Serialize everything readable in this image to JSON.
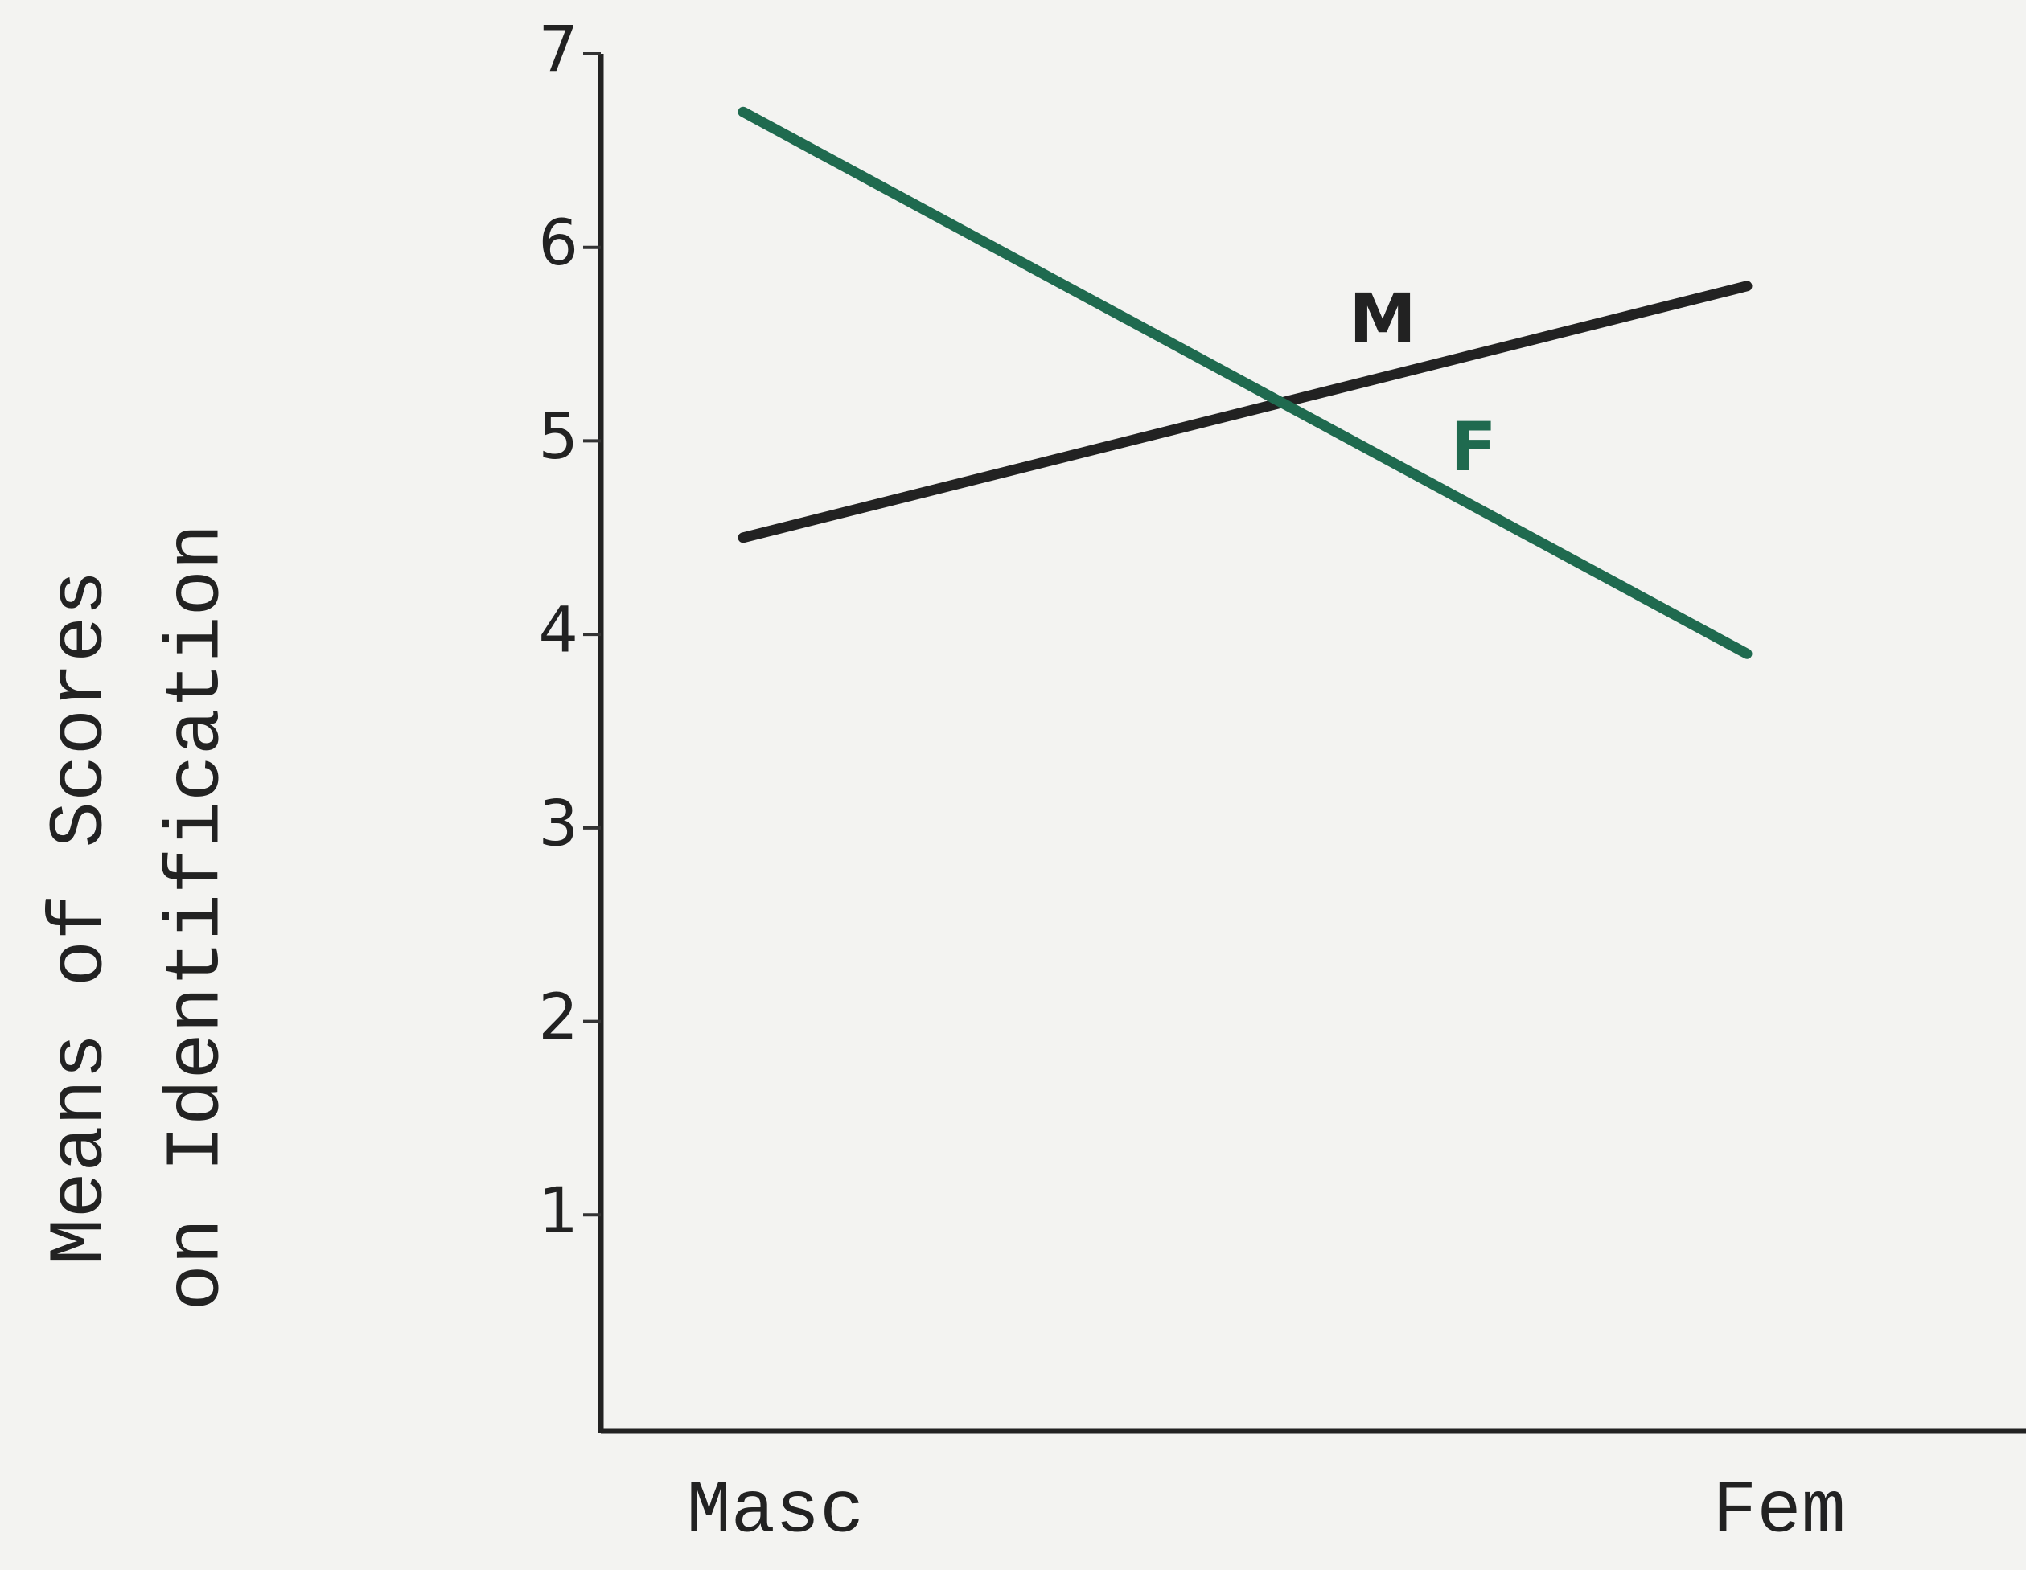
{
  "chart_data": {
    "type": "line",
    "ylabel": [
      "Means of Scores",
      "on Identification"
    ],
    "categories": [
      "Masc",
      "Fem"
    ],
    "series": [
      {
        "name": "M",
        "color": "#222222",
        "values": [
          4.5,
          5.8
        ]
      },
      {
        "name": "F",
        "color": "#1f6a4f",
        "values": [
          6.7,
          3.9
        ]
      }
    ],
    "ylim": [
      0,
      7
    ],
    "yticks": [
      1,
      2,
      3,
      4,
      5,
      6,
      7
    ]
  }
}
